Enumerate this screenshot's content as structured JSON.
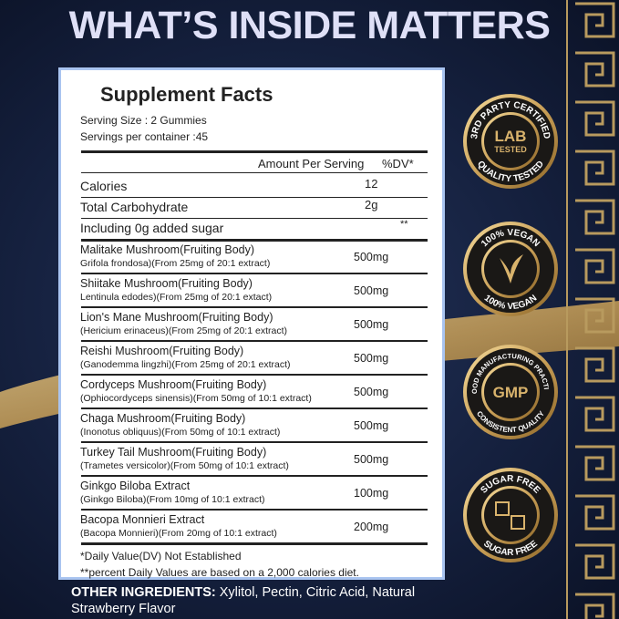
{
  "header": {
    "title": "WHAT’S INSIDE MATTERS"
  },
  "facts": {
    "title": "Supplement Facts",
    "serving_size": "Serving Size : 2 Gummies",
    "servings_per_container": "Servings per container :45",
    "amount_header": "Amount Per Serving",
    "dv_header": "%DV*",
    "basic_rows": [
      {
        "name": "Calories",
        "amount": "12"
      },
      {
        "name": "Total Carbohydrate",
        "amount": "2g"
      },
      {
        "name": "Including 0g added sugar",
        "dv": "**"
      }
    ],
    "ingredients": [
      {
        "name": "Malitake Mushroom(Fruiting Body)",
        "detail": "Grifola frondosa)(From 25mg of 20:1 extract)",
        "amount": "500mg"
      },
      {
        "name": "Shiitake Mushroom(Fruiting Body)",
        "detail": "Lentinula edodes)(From 25mg of 20:1 extact)",
        "amount": "500mg"
      },
      {
        "name": "Lion's Mane Mushroom(Fruiting Body)",
        "detail": "(Hericium erinaceus)(From 25mg of 20:1 extract)",
        "amount": "500mg"
      },
      {
        "name": "Reishi Mushroom(Fruiting Body)",
        "detail": "(Ganodemma lingzhi)(From 25mg of 20:1 extract)",
        "amount": "500mg"
      },
      {
        "name": "Cordyceps Mushroom(Fruiting Body)",
        "detail": "(Ophiocordyceps sinensis)(From 50mg of 10:1 extract)",
        "amount": "500mg"
      },
      {
        "name": "Chaga Mushroom(Fruiting Body)",
        "detail": "(Inonotus obliquus)(From 50mg of 10:1 extract)",
        "amount": "500mg"
      },
      {
        "name": "Turkey Tail Mushroom(Fruiting Body)",
        "detail": "(Trametes versicolor)(From 50mg of 10:1 extract)",
        "amount": "500mg"
      },
      {
        "name": "Ginkgo Biloba Extract",
        "detail": "(Ginkgo Biloba)(From 10mg of 10:1 extract)",
        "amount": "100mg"
      },
      {
        "name": "Bacopa Monnieri Extract",
        "detail": "(Bacopa Monnieri)(From 20mg of 10:1 extract)",
        "amount": "200mg"
      }
    ],
    "footnotes": [
      "*Daily Value(DV) Not Established",
      "**percent Daily Values are based on a 2,000 calories diet."
    ]
  },
  "other_ingredients": {
    "label": "OTHER INGREDIENTS:",
    "text": "Xylitol, Pectin, Citric Acid, Natural Strawberry Flavor"
  },
  "badges": [
    {
      "top": "3RD PARTY CERTIFIED",
      "center": [
        "LAB",
        "TESTED"
      ],
      "bottom": "QUALITY TESTED"
    },
    {
      "top": "100% VEGAN",
      "bottom": "100% VEGAN"
    },
    {
      "top": "GOOD MANUFACTURING PRACTICE",
      "center": [
        "GMP"
      ],
      "bottom": "CONSISTENT QUALITY"
    },
    {
      "top": "SUGAR FREE",
      "bottom": "SUGAR FREE"
    }
  ]
}
